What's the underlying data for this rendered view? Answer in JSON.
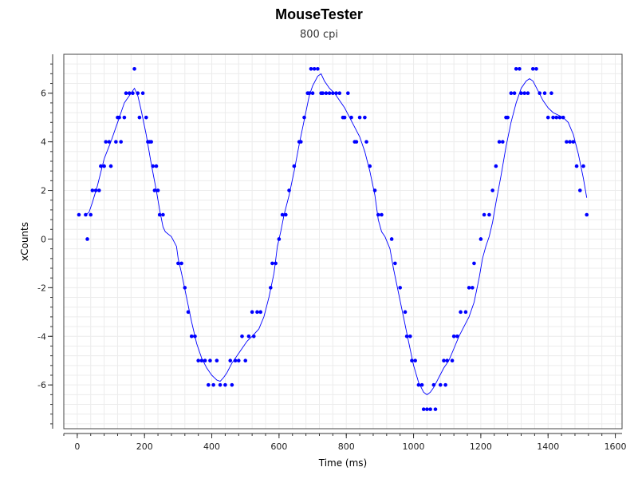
{
  "chart_data": {
    "type": "scatter",
    "title": "MouseTester",
    "subtitle": "800 cpi",
    "xlabel": "Time (ms)",
    "ylabel": "xCounts",
    "xlim": [
      -40,
      1620
    ],
    "ylim": [
      -7.8,
      7.6
    ],
    "xticks": [
      0,
      200,
      400,
      600,
      800,
      1000,
      1200,
      1400,
      1600
    ],
    "yticks": [
      -6,
      -4,
      -2,
      0,
      2,
      4,
      6
    ],
    "grid": true,
    "series": [
      {
        "name": "",
        "type": "scatter",
        "color": "#0000ff",
        "points": [
          [
            5,
            1
          ],
          [
            25,
            1
          ],
          [
            30,
            0
          ],
          [
            40,
            1
          ],
          [
            45,
            2
          ],
          [
            55,
            2
          ],
          [
            65,
            2
          ],
          [
            70,
            3
          ],
          [
            80,
            3
          ],
          [
            85,
            4
          ],
          [
            95,
            4
          ],
          [
            100,
            3
          ],
          [
            115,
            4
          ],
          [
            120,
            5
          ],
          [
            125,
            5
          ],
          [
            130,
            4
          ],
          [
            140,
            5
          ],
          [
            145,
            6
          ],
          [
            155,
            6
          ],
          [
            165,
            6
          ],
          [
            170,
            7
          ],
          [
            180,
            6
          ],
          [
            185,
            5
          ],
          [
            195,
            6
          ],
          [
            205,
            5
          ],
          [
            210,
            4
          ],
          [
            215,
            4
          ],
          [
            220,
            4
          ],
          [
            225,
            3
          ],
          [
            230,
            2
          ],
          [
            235,
            3
          ],
          [
            240,
            2
          ],
          [
            245,
            1
          ],
          [
            255,
            1
          ],
          [
            300,
            -1
          ],
          [
            310,
            -1
          ],
          [
            320,
            -2
          ],
          [
            330,
            -3
          ],
          [
            340,
            -4
          ],
          [
            350,
            -4
          ],
          [
            360,
            -5
          ],
          [
            370,
            -5
          ],
          [
            380,
            -5
          ],
          [
            390,
            -6
          ],
          [
            395,
            -5
          ],
          [
            405,
            -6
          ],
          [
            415,
            -5
          ],
          [
            425,
            -6
          ],
          [
            440,
            -6
          ],
          [
            455,
            -5
          ],
          [
            460,
            -6
          ],
          [
            470,
            -5
          ],
          [
            480,
            -5
          ],
          [
            490,
            -4
          ],
          [
            500,
            -5
          ],
          [
            510,
            -4
          ],
          [
            520,
            -3
          ],
          [
            525,
            -4
          ],
          [
            535,
            -3
          ],
          [
            545,
            -3
          ],
          [
            575,
            -2
          ],
          [
            580,
            -1
          ],
          [
            590,
            -1
          ],
          [
            600,
            0
          ],
          [
            610,
            1
          ],
          [
            620,
            1
          ],
          [
            630,
            2
          ],
          [
            645,
            3
          ],
          [
            660,
            4
          ],
          [
            665,
            4
          ],
          [
            675,
            5
          ],
          [
            685,
            6
          ],
          [
            690,
            6
          ],
          [
            695,
            7
          ],
          [
            700,
            6
          ],
          [
            705,
            7
          ],
          [
            715,
            7
          ],
          [
            725,
            6
          ],
          [
            730,
            6
          ],
          [
            740,
            6
          ],
          [
            750,
            6
          ],
          [
            760,
            6
          ],
          [
            770,
            6
          ],
          [
            780,
            6
          ],
          [
            790,
            5
          ],
          [
            795,
            5
          ],
          [
            805,
            6
          ],
          [
            815,
            5
          ],
          [
            825,
            4
          ],
          [
            830,
            4
          ],
          [
            840,
            5
          ],
          [
            855,
            5
          ],
          [
            860,
            4
          ],
          [
            870,
            3
          ],
          [
            885,
            2
          ],
          [
            895,
            1
          ],
          [
            905,
            1
          ],
          [
            935,
            0
          ],
          [
            945,
            -1
          ],
          [
            960,
            -2
          ],
          [
            975,
            -3
          ],
          [
            980,
            -4
          ],
          [
            990,
            -4
          ],
          [
            995,
            -5
          ],
          [
            1005,
            -5
          ],
          [
            1015,
            -6
          ],
          [
            1025,
            -6
          ],
          [
            1030,
            -7
          ],
          [
            1040,
            -7
          ],
          [
            1050,
            -7
          ],
          [
            1060,
            -6
          ],
          [
            1065,
            -7
          ],
          [
            1080,
            -6
          ],
          [
            1090,
            -5
          ],
          [
            1095,
            -6
          ],
          [
            1100,
            -5
          ],
          [
            1115,
            -5
          ],
          [
            1120,
            -4
          ],
          [
            1130,
            -4
          ],
          [
            1140,
            -3
          ],
          [
            1155,
            -3
          ],
          [
            1165,
            -2
          ],
          [
            1175,
            -2
          ],
          [
            1180,
            -1
          ],
          [
            1200,
            0
          ],
          [
            1210,
            1
          ],
          [
            1225,
            1
          ],
          [
            1235,
            2
          ],
          [
            1245,
            3
          ],
          [
            1255,
            4
          ],
          [
            1265,
            4
          ],
          [
            1275,
            5
          ],
          [
            1280,
            5
          ],
          [
            1290,
            6
          ],
          [
            1300,
            6
          ],
          [
            1305,
            7
          ],
          [
            1315,
            7
          ],
          [
            1320,
            6
          ],
          [
            1330,
            6
          ],
          [
            1340,
            6
          ],
          [
            1355,
            7
          ],
          [
            1365,
            7
          ],
          [
            1375,
            6
          ],
          [
            1390,
            6
          ],
          [
            1400,
            5
          ],
          [
            1410,
            6
          ],
          [
            1415,
            5
          ],
          [
            1425,
            5
          ],
          [
            1435,
            5
          ],
          [
            1445,
            5
          ],
          [
            1455,
            4
          ],
          [
            1465,
            4
          ],
          [
            1475,
            4
          ],
          [
            1485,
            3
          ],
          [
            1495,
            2
          ],
          [
            1505,
            3
          ],
          [
            1515,
            1
          ]
        ]
      },
      {
        "name": "",
        "type": "line",
        "color": "#0000ff",
        "points": [
          [
            25,
            1
          ],
          [
            35,
            1.1
          ],
          [
            45,
            1.5
          ],
          [
            60,
            2.2
          ],
          [
            80,
            3.3
          ],
          [
            100,
            4.0
          ],
          [
            120,
            4.8
          ],
          [
            140,
            5.6
          ],
          [
            160,
            6.0
          ],
          [
            170,
            6.2
          ],
          [
            180,
            5.9
          ],
          [
            190,
            5.3
          ],
          [
            205,
            4.3
          ],
          [
            220,
            3.1
          ],
          [
            235,
            2.0
          ],
          [
            245,
            1.2
          ],
          [
            255,
            0.5
          ],
          [
            262,
            0.3
          ],
          [
            280,
            0.1
          ],
          [
            295,
            -0.3
          ],
          [
            300,
            -0.8
          ],
          [
            310,
            -1.4
          ],
          [
            325,
            -2.4
          ],
          [
            340,
            -3.4
          ],
          [
            355,
            -4.3
          ],
          [
            370,
            -4.9
          ],
          [
            385,
            -5.3
          ],
          [
            400,
            -5.6
          ],
          [
            415,
            -5.8
          ],
          [
            425,
            -5.85
          ],
          [
            435,
            -5.7
          ],
          [
            445,
            -5.5
          ],
          [
            460,
            -5.1
          ],
          [
            475,
            -4.8
          ],
          [
            490,
            -4.5
          ],
          [
            505,
            -4.2
          ],
          [
            520,
            -4.0
          ],
          [
            540,
            -3.7
          ],
          [
            555,
            -3.2
          ],
          [
            570,
            -2.4
          ],
          [
            585,
            -1.4
          ],
          [
            595,
            -0.3
          ],
          [
            605,
            0.3
          ],
          [
            615,
            1.0
          ],
          [
            630,
            1.8
          ],
          [
            645,
            2.8
          ],
          [
            660,
            3.9
          ],
          [
            675,
            4.9
          ],
          [
            690,
            5.9
          ],
          [
            700,
            6.3
          ],
          [
            715,
            6.7
          ],
          [
            725,
            6.8
          ],
          [
            735,
            6.5
          ],
          [
            750,
            6.2
          ],
          [
            765,
            6.0
          ],
          [
            780,
            5.7
          ],
          [
            795,
            5.4
          ],
          [
            810,
            5.0
          ],
          [
            825,
            4.6
          ],
          [
            840,
            4.2
          ],
          [
            855,
            3.6
          ],
          [
            870,
            2.8
          ],
          [
            885,
            1.8
          ],
          [
            895,
            0.8
          ],
          [
            905,
            0.3
          ],
          [
            915,
            0.1
          ],
          [
            930,
            -0.4
          ],
          [
            940,
            -1.2
          ],
          [
            955,
            -2.2
          ],
          [
            970,
            -3.2
          ],
          [
            985,
            -4.2
          ],
          [
            1000,
            -5.2
          ],
          [
            1015,
            -5.9
          ],
          [
            1030,
            -6.3
          ],
          [
            1040,
            -6.4
          ],
          [
            1050,
            -6.3
          ],
          [
            1060,
            -6.1
          ],
          [
            1075,
            -5.7
          ],
          [
            1090,
            -5.3
          ],
          [
            1105,
            -5.0
          ],
          [
            1120,
            -4.5
          ],
          [
            1135,
            -4.0
          ],
          [
            1150,
            -3.6
          ],
          [
            1165,
            -3.2
          ],
          [
            1180,
            -2.6
          ],
          [
            1195,
            -1.6
          ],
          [
            1205,
            -0.8
          ],
          [
            1215,
            -0.3
          ],
          [
            1225,
            0.1
          ],
          [
            1235,
            0.7
          ],
          [
            1245,
            1.5
          ],
          [
            1260,
            2.6
          ],
          [
            1275,
            3.8
          ],
          [
            1290,
            4.8
          ],
          [
            1305,
            5.6
          ],
          [
            1320,
            6.2
          ],
          [
            1335,
            6.5
          ],
          [
            1345,
            6.6
          ],
          [
            1355,
            6.5
          ],
          [
            1370,
            6.1
          ],
          [
            1385,
            5.7
          ],
          [
            1400,
            5.4
          ],
          [
            1415,
            5.2
          ],
          [
            1430,
            5.1
          ],
          [
            1445,
            5.0
          ],
          [
            1460,
            4.8
          ],
          [
            1475,
            4.3
          ],
          [
            1490,
            3.5
          ],
          [
            1505,
            2.5
          ],
          [
            1515,
            1.7
          ]
        ]
      }
    ]
  }
}
